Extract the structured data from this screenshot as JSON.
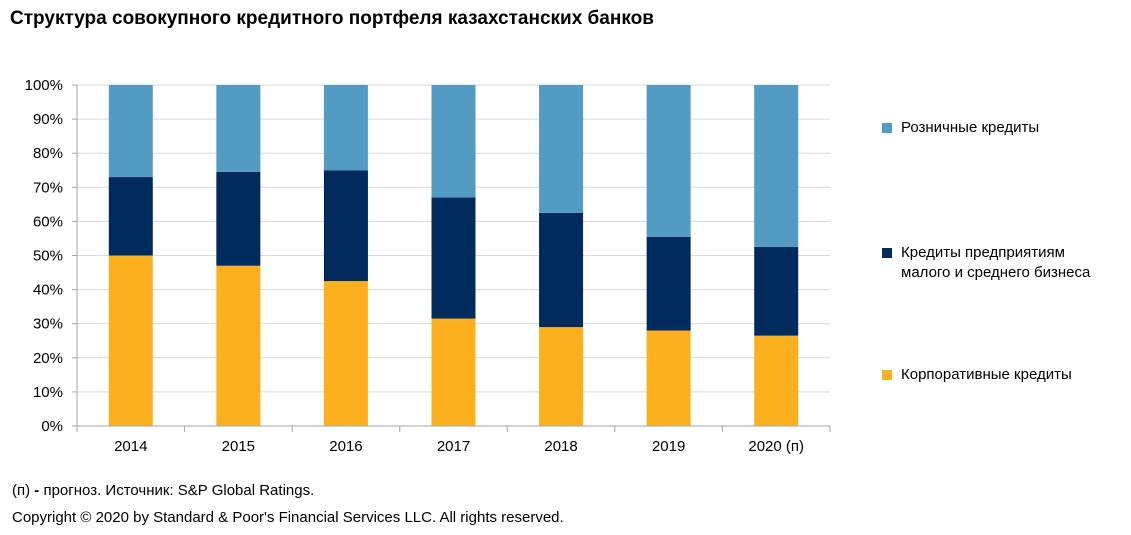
{
  "title": "Структура совокупного кредитного портфеля казахстанских банков",
  "legend": {
    "retail_label": "Розничные кредиты",
    "sme_label_line1": "Кредиты предприятиям",
    "sme_label_line2": "малого и среднего бизнеса",
    "corporate_label": "Корпоративные кредиты"
  },
  "footer": {
    "note_prefix": "(п)",
    "note_dash": "-",
    "note_rest": "прогноз. Источник: S&P Global Ratings.",
    "copyright": "Copyright © 2020 by Standard & Poor's Financial Services LLC. All rights reserved."
  },
  "colors": {
    "corporate": "#FDB01E",
    "sme": "#002B5C",
    "retail": "#529BC3",
    "grid": "#D9D9D9",
    "axis": "#A6A6A6"
  },
  "chart_data": {
    "type": "bar",
    "stacked": true,
    "categories": [
      "2014",
      "2015",
      "2016",
      "2017",
      "2018",
      "2019",
      "2020 (п)"
    ],
    "series": [
      {
        "name": "Корпоративные кредиты",
        "color": "#FDB01E",
        "values": [
          50,
          47,
          42.5,
          31.5,
          29,
          28,
          26.5
        ]
      },
      {
        "name": "Кредиты предприятиям малого и среднего бизнеса",
        "color": "#002B5C",
        "values": [
          23,
          27.5,
          32.5,
          35.5,
          33.5,
          27.5,
          26
        ]
      },
      {
        "name": "Розничные кредиты",
        "color": "#529BC3",
        "values": [
          27,
          25.5,
          25,
          33,
          37.5,
          44.5,
          47.5
        ]
      }
    ],
    "ylim": [
      0,
      100
    ],
    "yticks": [
      "0%",
      "10%",
      "20%",
      "30%",
      "40%",
      "50%",
      "60%",
      "70%",
      "80%",
      "90%",
      "100%"
    ],
    "grid": true,
    "legend_position": "right"
  }
}
